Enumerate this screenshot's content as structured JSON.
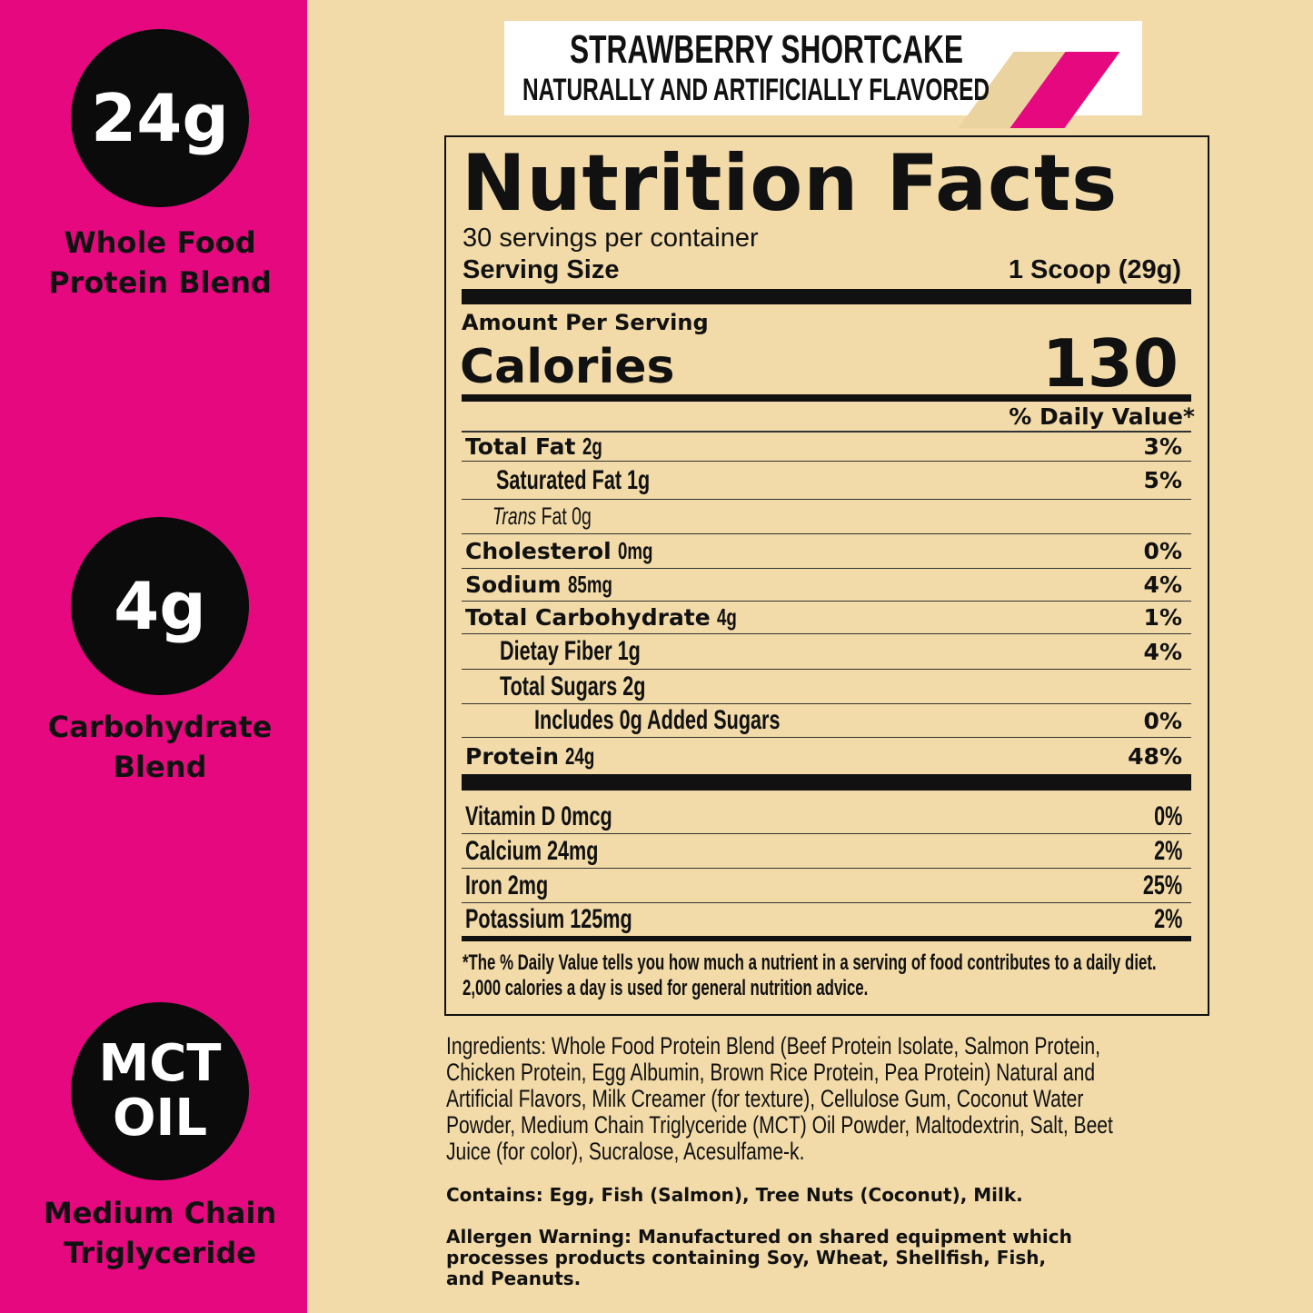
{
  "colors": {
    "pink": "#e5087f",
    "cream": "#f2dba9",
    "black": "#0b0b0b"
  },
  "badges": [
    {
      "value": "24g",
      "label_lines": [
        "Whole Food",
        "Protein Blend"
      ]
    },
    {
      "value": "4g",
      "label_lines": [
        "Carbohydrate",
        "Blend"
      ]
    },
    {
      "value_lines": [
        "MCT",
        "OIL"
      ],
      "label_lines": [
        "Medium Chain",
        "Triglyceride"
      ]
    }
  ],
  "banner": {
    "flavor": "STRAWBERRY SHORTCAKE",
    "subtitle": "NATURALLY AND ARTIFICIALLY FLAVORED"
  },
  "label": {
    "title": "Nutrition Facts",
    "servings": "30 servings per container",
    "serving_size_label": "Serving Size",
    "serving_size_value": "1 Scoop (29g)",
    "amount_per_serving": "Amount Per Serving",
    "calories_label": "Calories",
    "calories_value": "130",
    "dv_header": "% Daily Value*",
    "nutrients": [
      {
        "name": "Total Fat",
        "amount": "2g",
        "dv": "3%"
      },
      {
        "name": "Saturated Fat",
        "amount": "1g",
        "dv": "5%"
      },
      {
        "name": "Trans",
        "name2": "Fat",
        "amount": "0g",
        "dv": ""
      },
      {
        "name": "Cholesterol",
        "amount": "0mg",
        "dv": "0%"
      },
      {
        "name": "Sodium",
        "amount": "85mg",
        "dv": "4%"
      },
      {
        "name": "Total Carbohydrate",
        "amount": "4g",
        "dv": "1%"
      },
      {
        "name": "Dietay Fiber",
        "amount": "1g",
        "dv": "4%"
      },
      {
        "name": "Total Sugars",
        "amount": "2g",
        "dv": ""
      },
      {
        "name": "Includes 0g Added Sugars",
        "amount": "",
        "dv": "0%"
      },
      {
        "name": "Protein",
        "amount": "24g",
        "dv": "48%"
      }
    ],
    "vitamins": [
      {
        "text": "Vitamin D 0mcg",
        "dv": "0%"
      },
      {
        "text": "Calcium 24mg",
        "dv": "2%"
      },
      {
        "text": "Iron 2mg",
        "dv": "25%"
      },
      {
        "text": "Potassium 125mg",
        "dv": "2%"
      }
    ],
    "footnote_lines": [
      "*The % Daily Value tells you how much a nutrient in a serving of food contributes to a daily diet.",
      "2,000 calories a day is used for general nutrition advice."
    ]
  },
  "ingredients_lines": [
    "Ingredients: Whole Food Protein Blend (Beef Protein Isolate, Salmon Protein,",
    "Chicken Protein, Egg Albumin, Brown Rice Protein, Pea Protein) Natural and",
    "Artificial Flavors, Milk Creamer (for texture), Cellulose Gum, Coconut Water",
    "Powder, Medium Chain Triglyceride (MCT) Oil Powder, Maltodextrin, Salt, Beet",
    "Juice (for color), Sucralose, Acesulfame-k."
  ],
  "contains": "Contains: Egg, Fish (Salmon), Tree Nuts (Coconut), Milk.",
  "allergen_lines": [
    "Allergen Warning: Manufactured on shared equipment which",
    "processes products containing Soy, Wheat, Shellfish, Fish,",
    "and Peanuts."
  ]
}
